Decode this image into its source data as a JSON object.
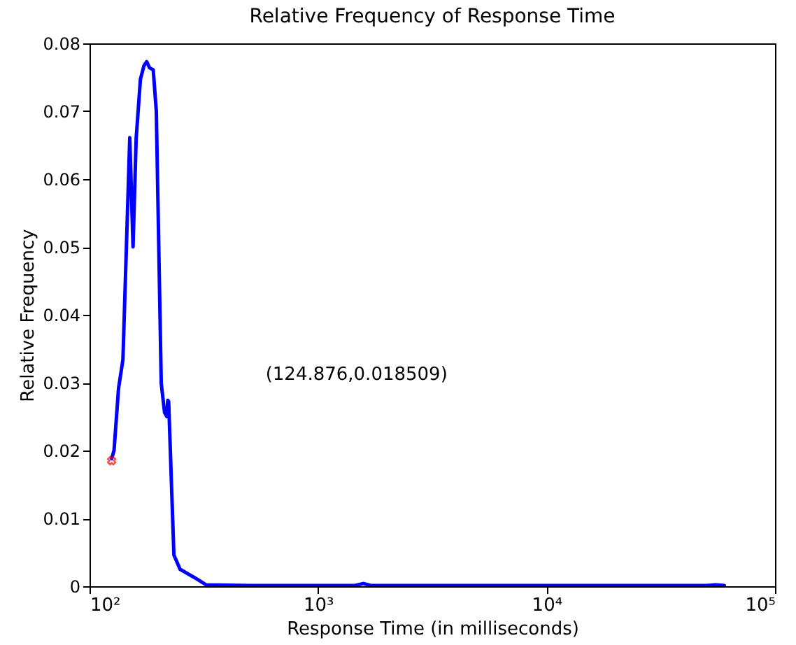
{
  "chart_data": {
    "type": "line",
    "title": "Relative Frequency of Response Time",
    "xlabel": "Response Time (in milliseconds)",
    "ylabel": "Relative Frequency",
    "log": "x",
    "xlim": [
      100,
      100000
    ],
    "xticks": [
      {
        "value": 100,
        "label": "10²"
      },
      {
        "value": 1000,
        "label": "10³"
      },
      {
        "value": 10000,
        "label": "10⁴"
      },
      {
        "value": 100000,
        "label": "10⁵"
      }
    ],
    "ylim": [
      0,
      0.08
    ],
    "yticks": [
      {
        "value": 0,
        "label": "0"
      },
      0.01,
      0.02,
      0.03,
      0.04,
      0.05,
      0.06,
      0.07,
      0.08
    ],
    "grid": false,
    "line_style": "solid",
    "series": [
      {
        "color": "#0000ff",
        "x": [
          125,
          128,
          134,
          140,
          150,
          155,
          160,
          167,
          173,
          178,
          183,
          190,
          196,
          206,
          213,
          218,
          220,
          222,
          234,
          249,
          294,
          324,
          500,
          1000,
          1450,
          1580,
          1700,
          3000,
          10000,
          30000,
          50000,
          55000,
          60000
        ],
        "values": [
          0.0188,
          0.02,
          0.0292,
          0.0334,
          0.0661,
          0.05,
          0.066,
          0.0747,
          0.0767,
          0.0773,
          0.0764,
          0.0761,
          0.07,
          0.0299,
          0.0256,
          0.025,
          0.0274,
          0.0272,
          0.0046,
          0.0025,
          0.0011,
          0.0002,
          0.0001,
          0.0001,
          0.0001,
          0.0004,
          0.0001,
          0.0001,
          0.0001,
          0.0001,
          0.0001,
          0.0002,
          0.0001
        ]
      },
      {
        "type": "scatter",
        "color": "#ff0000",
        "marker": "cross",
        "x": [
          125
        ],
        "values": [
          0.0185
        ]
      }
    ],
    "annotations": [
      "(124.876,0.018509)"
    ]
  }
}
